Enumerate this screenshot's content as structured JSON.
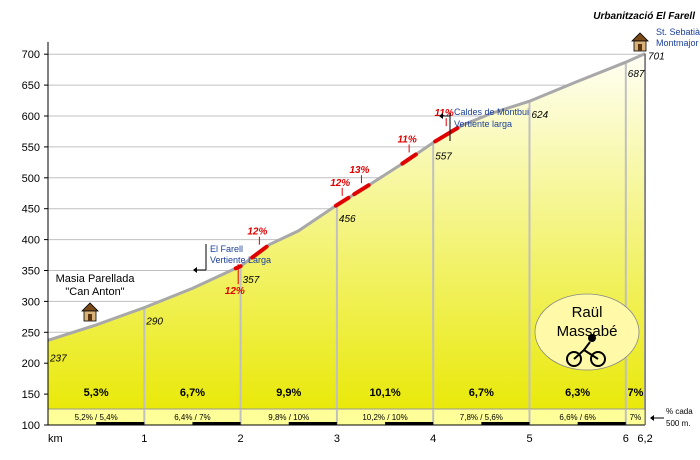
{
  "chart_data": {
    "type": "area",
    "title": "Urbanització El Farell",
    "xlabel": "km",
    "ylabel": "",
    "xlim": [
      0,
      6.2
    ],
    "ylim": [
      100,
      700
    ],
    "y_ticks": [
      100,
      150,
      200,
      250,
      300,
      350,
      400,
      450,
      500,
      550,
      600,
      650,
      700
    ],
    "x_ticks": [
      {
        "value": 0,
        "label": "km"
      },
      {
        "value": 1,
        "label": "1"
      },
      {
        "value": 2,
        "label": "2"
      },
      {
        "value": 3,
        "label": "3"
      },
      {
        "value": 4,
        "label": "4"
      },
      {
        "value": 5,
        "label": "5"
      },
      {
        "value": 6,
        "label": "6"
      },
      {
        "value": 6.2,
        "label": "6,2"
      }
    ],
    "grid": true,
    "profile": [
      {
        "x": 0,
        "y": 237
      },
      {
        "x": 0.5,
        "y": 262
      },
      {
        "x": 1,
        "y": 290
      },
      {
        "x": 1.5,
        "y": 321
      },
      {
        "x": 1.9,
        "y": 350
      },
      {
        "x": 2,
        "y": 357
      },
      {
        "x": 2.3,
        "y": 392
      },
      {
        "x": 2.6,
        "y": 414
      },
      {
        "x": 3,
        "y": 456
      },
      {
        "x": 3.3,
        "y": 485
      },
      {
        "x": 3.7,
        "y": 525
      },
      {
        "x": 4,
        "y": 557
      },
      {
        "x": 4.3,
        "y": 585
      },
      {
        "x": 4.6,
        "y": 604
      },
      {
        "x": 5,
        "y": 624
      },
      {
        "x": 5.5,
        "y": 656
      },
      {
        "x": 6,
        "y": 687
      },
      {
        "x": 6.2,
        "y": 701
      }
    ],
    "point_labels": [
      {
        "x": 0,
        "y": 237,
        "label": "237"
      },
      {
        "x": 1,
        "y": 290,
        "label": "290"
      },
      {
        "x": 2,
        "y": 357,
        "label": "357"
      },
      {
        "x": 3,
        "y": 456,
        "label": "456"
      },
      {
        "x": 4,
        "y": 557,
        "label": "557"
      },
      {
        "x": 5,
        "y": 624,
        "label": "624"
      },
      {
        "x": 6,
        "y": 687,
        "label": "687"
      },
      {
        "x": 6.2,
        "y": 701,
        "label": "701"
      }
    ],
    "segments": [
      {
        "x0": 0,
        "x1": 1,
        "avg": "5,3%",
        "halves": [
          "5,2%",
          "5,4%"
        ]
      },
      {
        "x0": 1,
        "x1": 2,
        "avg": "6,7%",
        "halves": [
          "6,4%",
          "7%"
        ]
      },
      {
        "x0": 2,
        "x1": 3,
        "avg": "9,9%",
        "halves": [
          "9,8%",
          "10%"
        ]
      },
      {
        "x0": 3,
        "x1": 4,
        "avg": "10,1%",
        "halves": [
          "10,2%",
          "10%"
        ]
      },
      {
        "x0": 4,
        "x1": 5,
        "avg": "6,7%",
        "halves": [
          "7,8%",
          "5,6%"
        ]
      },
      {
        "x0": 5,
        "x1": 6,
        "avg": "6,3%",
        "halves": [
          "6,6%",
          "6%"
        ]
      },
      {
        "x0": 6,
        "x1": 6.2,
        "avg": "7%",
        "halves": [
          "7%"
        ]
      }
    ],
    "steep_sections": [
      {
        "x0": 1.95,
        "x1": 2.0,
        "label": "12%"
      },
      {
        "x0": 2.12,
        "x1": 2.27,
        "label": "12%"
      },
      {
        "x0": 2.99,
        "x1": 3.12,
        "label": "12%"
      },
      {
        "x0": 3.18,
        "x1": 3.33,
        "label": "13%"
      },
      {
        "x0": 3.68,
        "x1": 3.82,
        "label": "11%"
      },
      {
        "x0": 4.02,
        "x1": 4.25,
        "label": "11%"
      }
    ],
    "annotations": [
      {
        "id": "masia",
        "lines": [
          "Masia Parellada",
          "\"Can Anton\""
        ]
      },
      {
        "id": "farell",
        "lines": [
          "El Farell",
          "Vertiente Larga"
        ]
      },
      {
        "id": "caldes",
        "lines": [
          "Caldes de Montbui",
          "Vertiente larga"
        ]
      },
      {
        "id": "sebastia",
        "lines": [
          "St. Sebatià",
          "Montmajor"
        ]
      }
    ],
    "legend_note": [
      "% cada",
      "500 m."
    ],
    "badge": [
      "Raül",
      "Massabé"
    ],
    "colors": {
      "fill_top": "#fffff5",
      "fill_bottom": "#e8e800",
      "profile_line": "#a8a8a8",
      "steep": "#e00000",
      "grid": "#c0c0c0",
      "badge": "#fff9a8",
      "label_blue": "#1a3f9a"
    }
  }
}
